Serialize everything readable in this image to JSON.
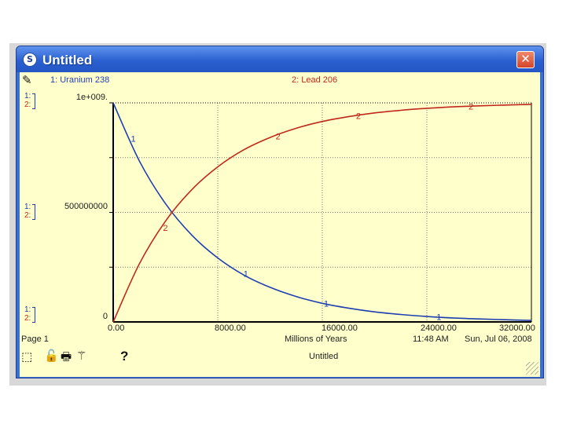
{
  "window": {
    "title": "Untitled",
    "app_icon": "S"
  },
  "legend": {
    "series1": "1: Uranium 238",
    "series2": "2: Lead 206"
  },
  "axis_tags": {
    "s1": "1:",
    "s2": "2:"
  },
  "y_ticks": [
    "1e+009.",
    "500000000",
    "0"
  ],
  "x_ticks": [
    "0.00",
    "8000.00",
    "16000.00",
    "24000.00",
    "32000.00"
  ],
  "footer": {
    "page": "Page 1",
    "xlabel": "Millions of Years",
    "time": "11:48 AM",
    "date": "Sun, Jul 06, 2008",
    "graph_name": "Untitled",
    "help": "?"
  },
  "colors": {
    "series1": "#1f3fb0",
    "series2": "#c0281c",
    "background": "#ffffcc"
  },
  "chart_data": {
    "type": "line",
    "xlabel": "Millions of Years",
    "xlim": [
      0,
      32000
    ],
    "ylim": [
      0,
      1000000000
    ],
    "series": [
      {
        "name": "1: Uranium 238",
        "x": [
          0,
          2000,
          4000,
          6000,
          8000,
          10000,
          12000,
          14000,
          16000,
          18000,
          20000,
          22000,
          24000,
          26000,
          28000,
          30000,
          32000
        ],
        "values": [
          1000000000,
          735000000,
          540000000,
          397000000,
          292000000,
          214000000,
          158000000,
          116000000,
          85000000,
          63000000,
          46000000,
          34000000,
          25000000,
          18000000,
          13500000,
          10000000,
          7000000
        ]
      },
      {
        "name": "2: Lead 206",
        "x": [
          0,
          2000,
          4000,
          6000,
          8000,
          10000,
          12000,
          14000,
          16000,
          18000,
          20000,
          22000,
          24000,
          26000,
          28000,
          30000,
          32000
        ],
        "values": [
          0,
          265000000,
          460000000,
          603000000,
          708000000,
          786000000,
          842000000,
          884000000,
          915000000,
          937000000,
          954000000,
          966000000,
          975000000,
          982000000,
          986500000,
          990000000,
          993000000
        ]
      }
    ]
  }
}
